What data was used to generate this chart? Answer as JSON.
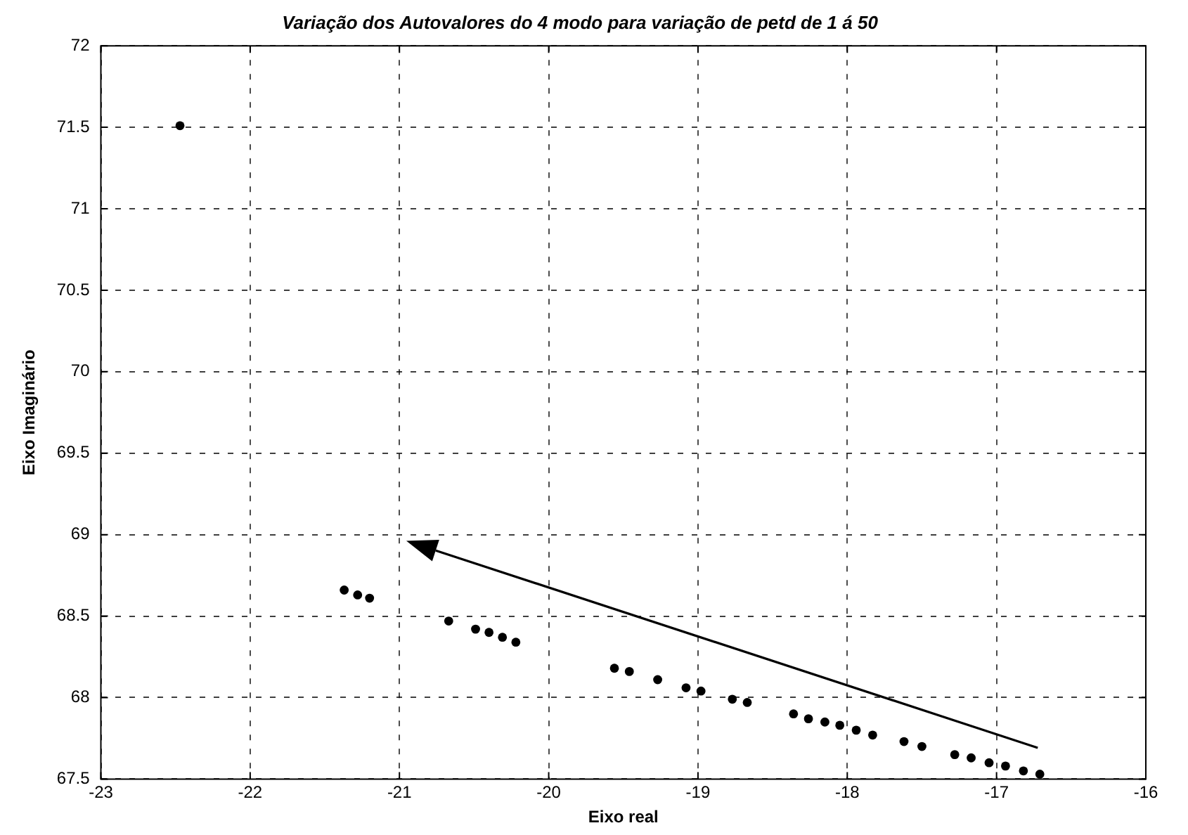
{
  "chart_data": {
    "type": "scatter",
    "title": "Variação dos Autovalores do 4 modo para variação de petd de 1 á 50",
    "xlabel": "Eixo real",
    "ylabel": "Eixo Imaginário",
    "x": [
      -22.47,
      -21.37,
      -21.28,
      -21.2,
      -20.67,
      -20.49,
      -20.4,
      -20.31,
      -20.22,
      -19.56,
      -19.46,
      -19.27,
      -19.08,
      -18.98,
      -18.77,
      -18.67,
      -18.36,
      -18.26,
      -18.15,
      -18.05,
      -17.94,
      -17.83,
      -17.62,
      -17.5,
      -17.28,
      -17.17,
      -17.05,
      -16.94,
      -16.82,
      -16.71
    ],
    "values": [
      71.51,
      68.66,
      68.63,
      68.61,
      68.47,
      68.42,
      68.4,
      68.37,
      68.34,
      68.18,
      68.16,
      68.11,
      68.06,
      68.04,
      67.99,
      67.97,
      67.9,
      67.87,
      67.85,
      67.83,
      67.8,
      67.77,
      67.73,
      67.7,
      67.65,
      67.63,
      67.6,
      67.58,
      67.55,
      67.53
    ],
    "color": "#000000",
    "marker": "circle",
    "grid": true,
    "legend": false,
    "xlim": [
      -23,
      -16
    ],
    "xticks": [
      -23,
      -22,
      -21,
      -20,
      -19,
      -18,
      -17,
      -16
    ],
    "ylim": [
      67.5,
      72
    ],
    "yticks": [
      {
        "value": 67.5,
        "label": "67.5"
      },
      68,
      {
        "value": 68.5,
        "label": "68.5"
      },
      69,
      {
        "value": 69.5,
        "label": "69.5"
      },
      70,
      {
        "value": 70.5,
        "label": "70.5"
      },
      71,
      {
        "value": 71.5,
        "label": "71.5"
      },
      72
    ]
  }
}
